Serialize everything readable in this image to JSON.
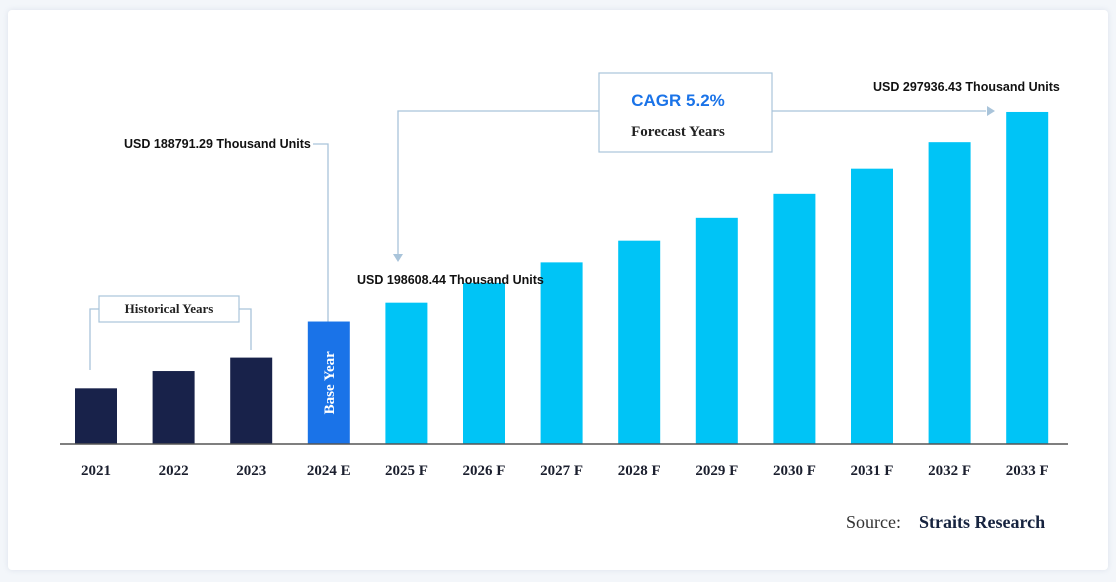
{
  "chart_data": {
    "type": "bar",
    "categories": [
      "2021",
      "2022",
      "2023",
      "2024 E",
      "2025 F",
      "2026 F",
      "2027 F",
      "2028 F",
      "2029 F",
      "2030 F",
      "2031 F",
      "2032 F",
      "2033 F"
    ],
    "values": [
      154000,
      163000,
      170000,
      188791.29,
      198608.44,
      208900,
      219600,
      230900,
      242800,
      255300,
      268400,
      282200,
      297936.43
    ],
    "ylim": [
      125000,
      300000
    ],
    "grid": false,
    "bar_groups": [
      "historical",
      "historical",
      "historical",
      "base",
      "forecast",
      "forecast",
      "forecast",
      "forecast",
      "forecast",
      "forecast",
      "forecast",
      "forecast",
      "forecast"
    ],
    "annotations": {
      "base_value": "USD 188791.29 Thousand Units",
      "first_forecast_value": "USD 198608.44 Thousand Units",
      "last_value": "USD 297936.43 Thousand Units",
      "historical_label": "Historical Years",
      "base_bar_label": "Base Year",
      "cagr": "CAGR 5.2%",
      "forecast_label": "Forecast Years"
    }
  },
  "source": {
    "prefix": "Source:",
    "name": "Straits Research"
  },
  "colors": {
    "historical": "#18224a",
    "base": "#1a73e8",
    "forecast": "#00c4f6",
    "axis": "#555555",
    "connector": "#a9c4da"
  }
}
